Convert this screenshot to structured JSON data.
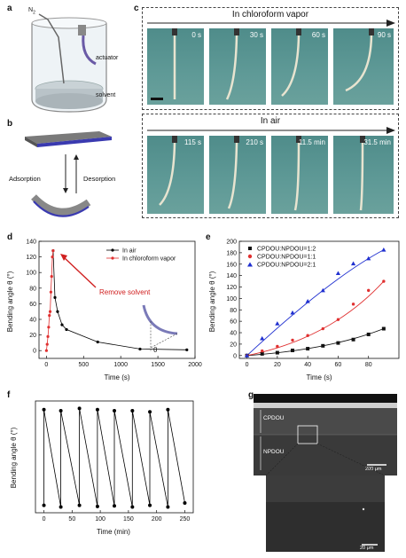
{
  "panels": {
    "a": {
      "label": "a",
      "gas": "N",
      "gas_sub": "2",
      "actuator": "actuator",
      "solvent": "solvent"
    },
    "b": {
      "label": "b",
      "adsorption": "Adsorption",
      "desorption": "Desorption"
    },
    "c": {
      "label": "c",
      "top_title": "In chloroform vapor",
      "bottom_title": "In air",
      "top_times": [
        "0 s",
        "30 s",
        "60 s",
        "90 s"
      ],
      "bottom_times": [
        "115 s",
        "210 s",
        "11.5 min",
        "31.5 min"
      ]
    },
    "d": {
      "label": "d",
      "ylabel": "Bending angle θ (°)",
      "xlabel": "Time (s)",
      "annotation": "Remove solvent",
      "theta": "θ"
    },
    "e": {
      "label": "e",
      "ylabel": "Bending angle θ (°)",
      "xlabel": "Time (s)"
    },
    "f": {
      "label": "f",
      "ylabel": "Bending angle θ (°)",
      "xlabel": "Time (min)"
    },
    "g": {
      "label": "g",
      "layer_top": "CPDOU",
      "layer_bottom": "NPDOU",
      "scale_1": "200 μm",
      "scale_2": "20 μm"
    }
  },
  "chart_data": [
    {
      "panel": "d",
      "type": "line",
      "xlim": [
        -100,
        2000
      ],
      "ylim": [
        -10,
        140
      ],
      "xticks": [
        0,
        500,
        1000,
        1500,
        2000
      ],
      "yticks": [
        0,
        20,
        40,
        60,
        80,
        100,
        120,
        140
      ],
      "legend_position": "top-right",
      "series": [
        {
          "name": "In air",
          "color": "#000000",
          "x": [
            90,
            115,
            150,
            210,
            270,
            690,
            1260,
            1890
          ],
          "y": [
            128,
            68,
            50,
            33,
            27,
            11,
            2,
            1
          ]
        },
        {
          "name": "In chloroform vapor",
          "color": "#e03030",
          "x": [
            0,
            10,
            20,
            30,
            40,
            50,
            60,
            70,
            80,
            90
          ],
          "y": [
            0,
            8,
            18,
            30,
            45,
            50,
            75,
            95,
            120,
            128
          ]
        }
      ]
    },
    {
      "panel": "e",
      "type": "scatter",
      "xlim": [
        -5,
        100
      ],
      "ylim": [
        -5,
        200
      ],
      "xticks": [
        0,
        20,
        40,
        60,
        80
      ],
      "yticks": [
        0,
        20,
        40,
        60,
        80,
        100,
        120,
        140,
        160,
        180,
        200
      ],
      "legend_position": "top-left",
      "series": [
        {
          "name": "CPDOU:NPDOU=1:2",
          "color": "#111111",
          "marker": "square",
          "x": [
            0,
            10,
            20,
            30,
            40,
            50,
            60,
            70,
            80,
            90
          ],
          "y": [
            0,
            3,
            5,
            9,
            12,
            17,
            22,
            28,
            37,
            47
          ]
        },
        {
          "name": "CPDOU:NPDOU=1:1",
          "color": "#e03030",
          "marker": "circle",
          "x": [
            0,
            10,
            20,
            30,
            40,
            50,
            60,
            70,
            80,
            90
          ],
          "y": [
            0,
            8,
            16,
            27,
            35,
            47,
            63,
            90,
            114,
            130
          ]
        },
        {
          "name": "CPDOU:NPDOU=2:1",
          "color": "#2030d0",
          "marker": "triangle",
          "x": [
            0,
            10,
            20,
            30,
            40,
            50,
            60,
            70,
            80,
            90
          ],
          "y": [
            0,
            30,
            56,
            75,
            95,
            114,
            144,
            161,
            170,
            185
          ]
        }
      ]
    },
    {
      "panel": "f",
      "type": "line",
      "xlim": [
        -15,
        265
      ],
      "ylim": [
        -10,
        185
      ],
      "xticks": [
        0,
        50,
        100,
        150,
        200,
        250
      ],
      "x": [
        0,
        0,
        30,
        30,
        63,
        63,
        95,
        95,
        125,
        125,
        157,
        157,
        188,
        188,
        220,
        220,
        250
      ],
      "y": [
        3,
        170,
        0,
        168,
        3,
        172,
        1,
        170,
        2,
        168,
        0,
        168,
        3,
        166,
        0,
        170,
        7
      ],
      "color": "#000000"
    }
  ]
}
